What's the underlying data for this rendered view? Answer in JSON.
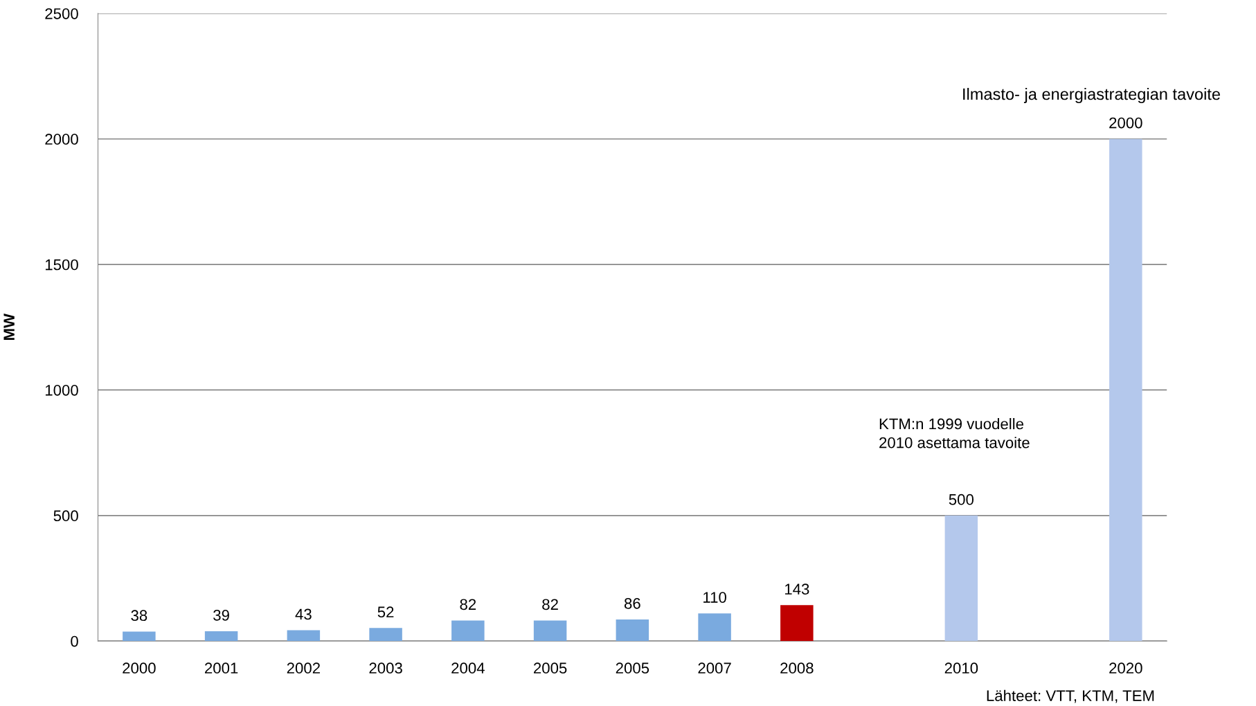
{
  "chart_data": {
    "type": "bar",
    "ylabel": "MW",
    "categories": [
      "2000",
      "2001",
      "2002",
      "2003",
      "2004",
      "2005",
      "2005",
      "2007",
      "2008",
      null,
      "2010",
      null,
      "2020"
    ],
    "values": [
      38,
      39,
      43,
      52,
      82,
      82,
      86,
      110,
      143,
      null,
      500,
      null,
      2000
    ],
    "colors": [
      "#7aaadf",
      "#7aaadf",
      "#7aaadf",
      "#7aaadf",
      "#7aaadf",
      "#7aaadf",
      "#7aaadf",
      "#7aaadf",
      "#c00000",
      "#7aaadf",
      "#b4c8ec",
      "#7aaadf",
      "#b4c8ec"
    ],
    "ylim": [
      0,
      2500
    ],
    "yticks": [
      0,
      500,
      1000,
      1500,
      2000,
      2500
    ],
    "grid": "y",
    "data_labels": true,
    "annotations": [
      "Ilmasto- ja energiastrategian tavoite",
      "KTM:n 1999 vuodelle\n2010 asettama tavoite",
      "Lähteet: VTT, KTM, TEM"
    ]
  }
}
